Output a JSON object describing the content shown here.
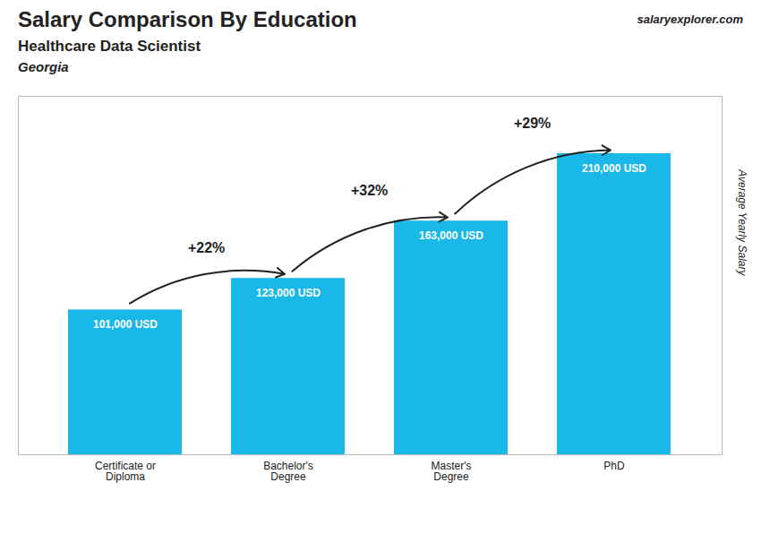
{
  "chart_data": {
    "type": "bar",
    "title": "Salary Comparison By Education",
    "subtitle": "Healthcare Data Scientist",
    "location": "Georgia",
    "watermark": [
      "salary",
      "explorer.com"
    ],
    "ylabel": "Average Yearly Salary",
    "categories": [
      "Certificate or\nDiploma",
      "Bachelor's\nDegree",
      "Master's\nDegree",
      "PhD"
    ],
    "values": [
      101000,
      123000,
      163000,
      210000
    ],
    "value_labels": [
      "101,000 USD",
      "123,000 USD",
      "163,000 USD",
      "210,000 USD"
    ],
    "data_labels": true,
    "annotations": [
      "+22%",
      "+32%",
      "+29%"
    ],
    "color": "#1ab8e8",
    "ylim": [
      0,
      250000
    ],
    "tick_labels": "x",
    "grid": false
  }
}
